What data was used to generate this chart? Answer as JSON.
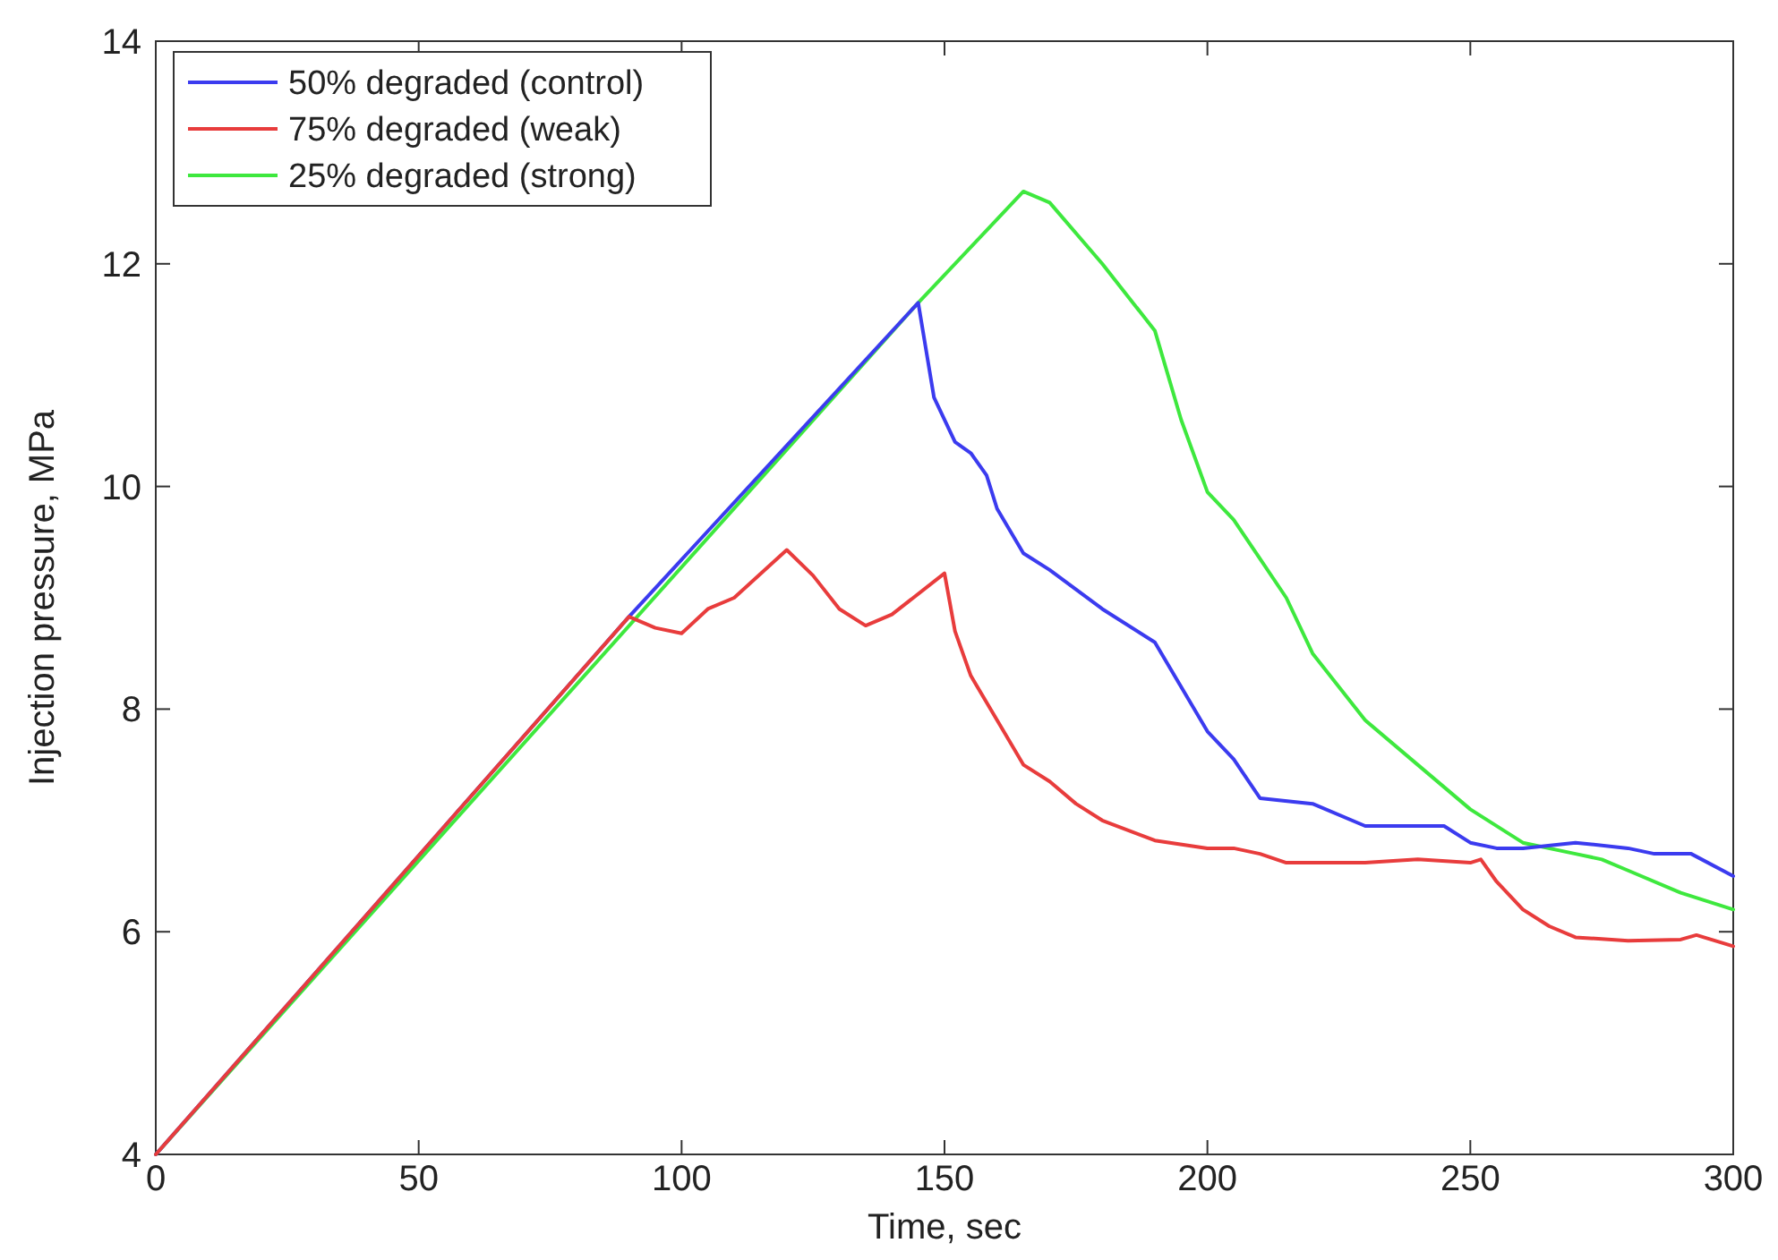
{
  "chart_data": {
    "type": "line",
    "xlabel": "Time, sec",
    "ylabel": "Injection pressure, MPa",
    "xlim": [
      0,
      300
    ],
    "ylim": [
      4,
      14
    ],
    "xticks": [
      0,
      50,
      100,
      150,
      200,
      250,
      300
    ],
    "yticks": [
      4,
      6,
      8,
      10,
      12,
      14
    ],
    "grid": false,
    "legend": "top left",
    "marker": "none",
    "line_style": "solid",
    "series": [
      {
        "name": "50% degraded (control)",
        "color": "#3b3bef",
        "x": [
          0,
          90,
          145,
          148,
          152,
          155,
          158,
          160,
          165,
          170,
          180,
          190,
          195,
          200,
          205,
          210,
          220,
          230,
          245,
          250,
          255,
          260,
          270,
          280,
          285,
          292,
          300
        ],
        "values": [
          4,
          8.83,
          11.65,
          10.8,
          10.4,
          10.3,
          10.1,
          9.8,
          9.4,
          9.25,
          8.9,
          8.6,
          8.2,
          7.8,
          7.55,
          7.2,
          7.15,
          6.95,
          6.95,
          6.8,
          6.75,
          6.75,
          6.8,
          6.75,
          6.7,
          6.7,
          6.5
        ]
      },
      {
        "name": "75% degraded (weak)",
        "color": "#e83c3c",
        "x": [
          0,
          90,
          95,
          100,
          105,
          110,
          120,
          125,
          130,
          135,
          140,
          150,
          152,
          155,
          160,
          165,
          170,
          175,
          180,
          190,
          200,
          205,
          210,
          215,
          230,
          240,
          250,
          252,
          255,
          260,
          265,
          270,
          280,
          290,
          293,
          300
        ],
        "values": [
          4,
          8.83,
          8.73,
          8.68,
          8.9,
          9,
          9.43,
          9.2,
          8.9,
          8.75,
          8.85,
          9.22,
          8.7,
          8.3,
          7.9,
          7.5,
          7.35,
          7.15,
          7,
          6.82,
          6.75,
          6.75,
          6.7,
          6.62,
          6.62,
          6.65,
          6.62,
          6.65,
          6.45,
          6.2,
          6.05,
          5.95,
          5.92,
          5.93,
          5.97,
          5.87
        ]
      },
      {
        "name": "25% degraded (strong)",
        "color": "#3ee83e",
        "x": [
          0,
          145,
          165,
          170,
          180,
          190,
          195,
          200,
          205,
          210,
          215,
          220,
          230,
          240,
          250,
          260,
          270,
          275,
          280,
          290,
          300
        ],
        "values": [
          4,
          11.65,
          12.65,
          12.55,
          12,
          11.4,
          10.6,
          9.95,
          9.7,
          9.35,
          9,
          8.5,
          7.9,
          7.5,
          7.1,
          6.8,
          6.7,
          6.65,
          6.55,
          6.35,
          6.2
        ]
      }
    ]
  }
}
